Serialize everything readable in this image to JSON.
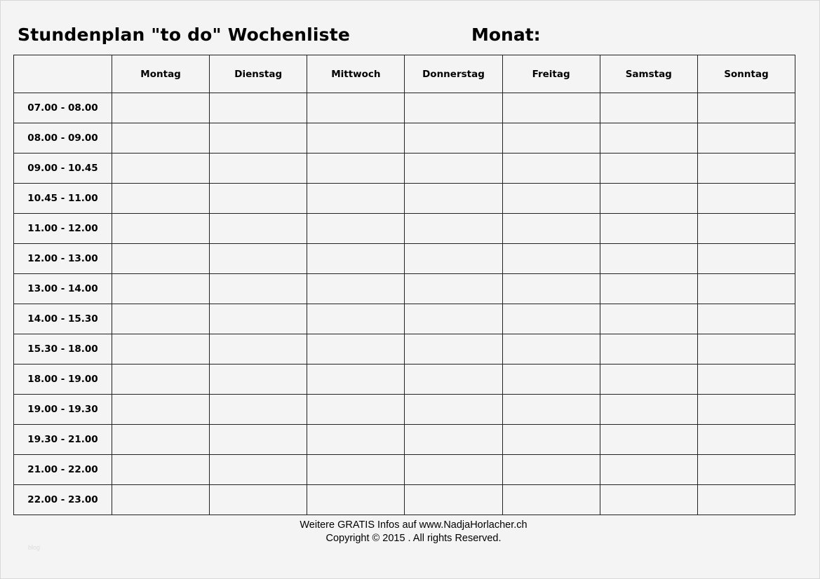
{
  "title": "Stundenplan \"to do\" Wochenliste",
  "month_label": "Monat:",
  "days": [
    "Montag",
    "Dienstag",
    "Mittwoch",
    "Donnerstag",
    "Freitag",
    "Samstag",
    "Sonntag"
  ],
  "times": [
    "07.00 - 08.00",
    "08.00 - 09.00",
    "09.00 - 10.45",
    "10.45 - 11.00",
    "11.00 - 12.00",
    "12.00 - 13.00",
    "13.00 - 14.00",
    "14.00 - 15.30",
    "15.30 - 18.00",
    "18.00 - 19.00",
    "19.00 - 19.30",
    "19.30 - 21.00",
    "21.00 - 22.00",
    "22.00 - 23.00"
  ],
  "footer": {
    "line1": "Weitere GRATIS Infos auf www.NadjaHorlacher.ch",
    "line2": "Copyright © 2015 . All rights Reserved."
  },
  "watermark": "blog"
}
